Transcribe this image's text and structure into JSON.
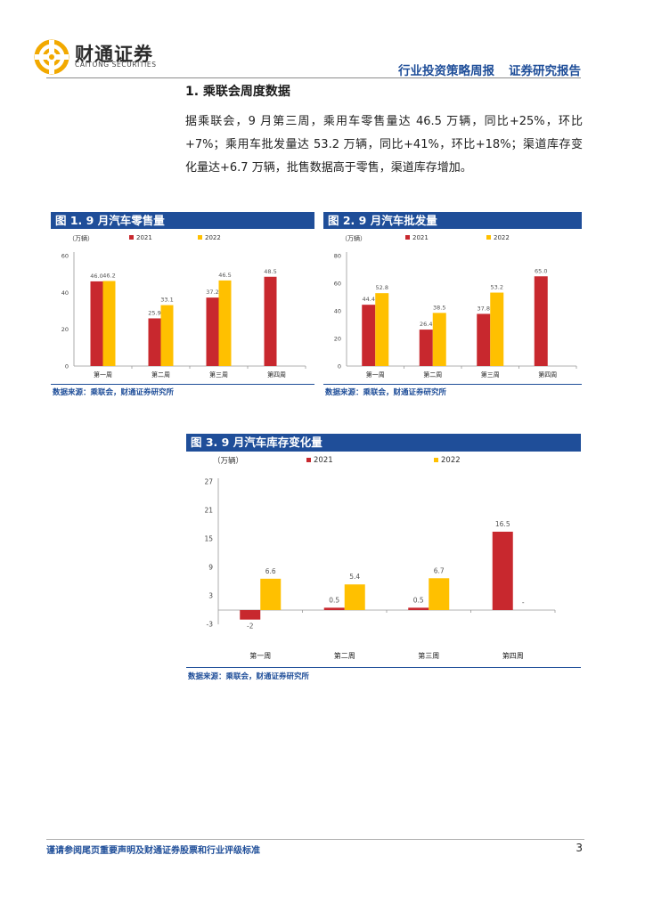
{
  "header": {
    "logo_cn": "财通证券",
    "logo_en": "CAITONG SECURITIES",
    "report_type": "行业投资策略周报",
    "report_category": "证券研究报告"
  },
  "section": {
    "title": "1.  乘联会周度数据",
    "body": "据乘联会，9 月第三周，乘用车零售量达 46.5 万辆，同比+25%，环比+7%；乘用车批发量达 53.2 万辆，同比+41%，环比+18%；渠道库存变化量达+6.7 万辆，批售数据高于零售，渠道库存增加。"
  },
  "colors": {
    "series_2021": "#c8282e",
    "series_2022": "#ffc000",
    "accent": "#1f4e99"
  },
  "chart_data": [
    {
      "type": "bar",
      "title": "图 1. 9 月汽车零售量",
      "unit": "（万辆）",
      "categories": [
        "第一周",
        "第二周",
        "第三周",
        "第四周"
      ],
      "series": [
        {
          "name": "2021",
          "values": [
            46.0,
            25.9,
            37.2,
            48.5
          ],
          "labels": [
            "46.0",
            "25.9",
            "37.2",
            "48.5"
          ]
        },
        {
          "name": "2022",
          "values": [
            46.2,
            33.1,
            46.5,
            null
          ],
          "labels": [
            "46.2",
            "33.1",
            "46.5",
            ""
          ]
        }
      ],
      "yticks": [
        "0",
        "20",
        "40",
        "60"
      ],
      "ylim": [
        0,
        60
      ],
      "source": "数据来源：乘联会，财通证券研究所"
    },
    {
      "type": "bar",
      "title": "图 2. 9 月汽车批发量",
      "unit": "（万辆）",
      "categories": [
        "第一周",
        "第二周",
        "第三周",
        "第四周"
      ],
      "series": [
        {
          "name": "2021",
          "values": [
            44.4,
            26.4,
            37.8,
            65.0
          ],
          "labels": [
            "44.4",
            "26.4",
            "37.8",
            "65.0"
          ]
        },
        {
          "name": "2022",
          "values": [
            52.8,
            38.5,
            53.2,
            null
          ],
          "labels": [
            "52.8",
            "38.5",
            "53.2",
            ""
          ]
        }
      ],
      "yticks": [
        "0",
        "20",
        "40",
        "60",
        "80"
      ],
      "ylim": [
        0,
        80
      ],
      "source": "数据来源：乘联会，财通证券研究所"
    },
    {
      "type": "bar",
      "title": "图 3. 9 月汽车库存变化量",
      "unit": "（万辆）",
      "categories": [
        "第一周",
        "第二周",
        "第三周",
        "第四周"
      ],
      "series": [
        {
          "name": "2021",
          "values": [
            -2,
            0.5,
            0.5,
            16.5
          ],
          "labels": [
            "-2",
            "0.5",
            "0.5",
            "16.5"
          ]
        },
        {
          "name": "2022",
          "values": [
            6.6,
            5.4,
            6.7,
            null
          ],
          "labels": [
            "6.6",
            "5.4",
            "6.7",
            "-"
          ]
        }
      ],
      "yticks": [
        "-3",
        "3",
        "9",
        "15",
        "21",
        "27"
      ],
      "ylim": [
        -3,
        27
      ],
      "source": "数据来源：乘联会，财通证券研究所"
    }
  ],
  "footer": {
    "disclaimer": "谨请参阅尾页重要声明及财通证券股票和行业评级标准",
    "page_number": "3"
  }
}
